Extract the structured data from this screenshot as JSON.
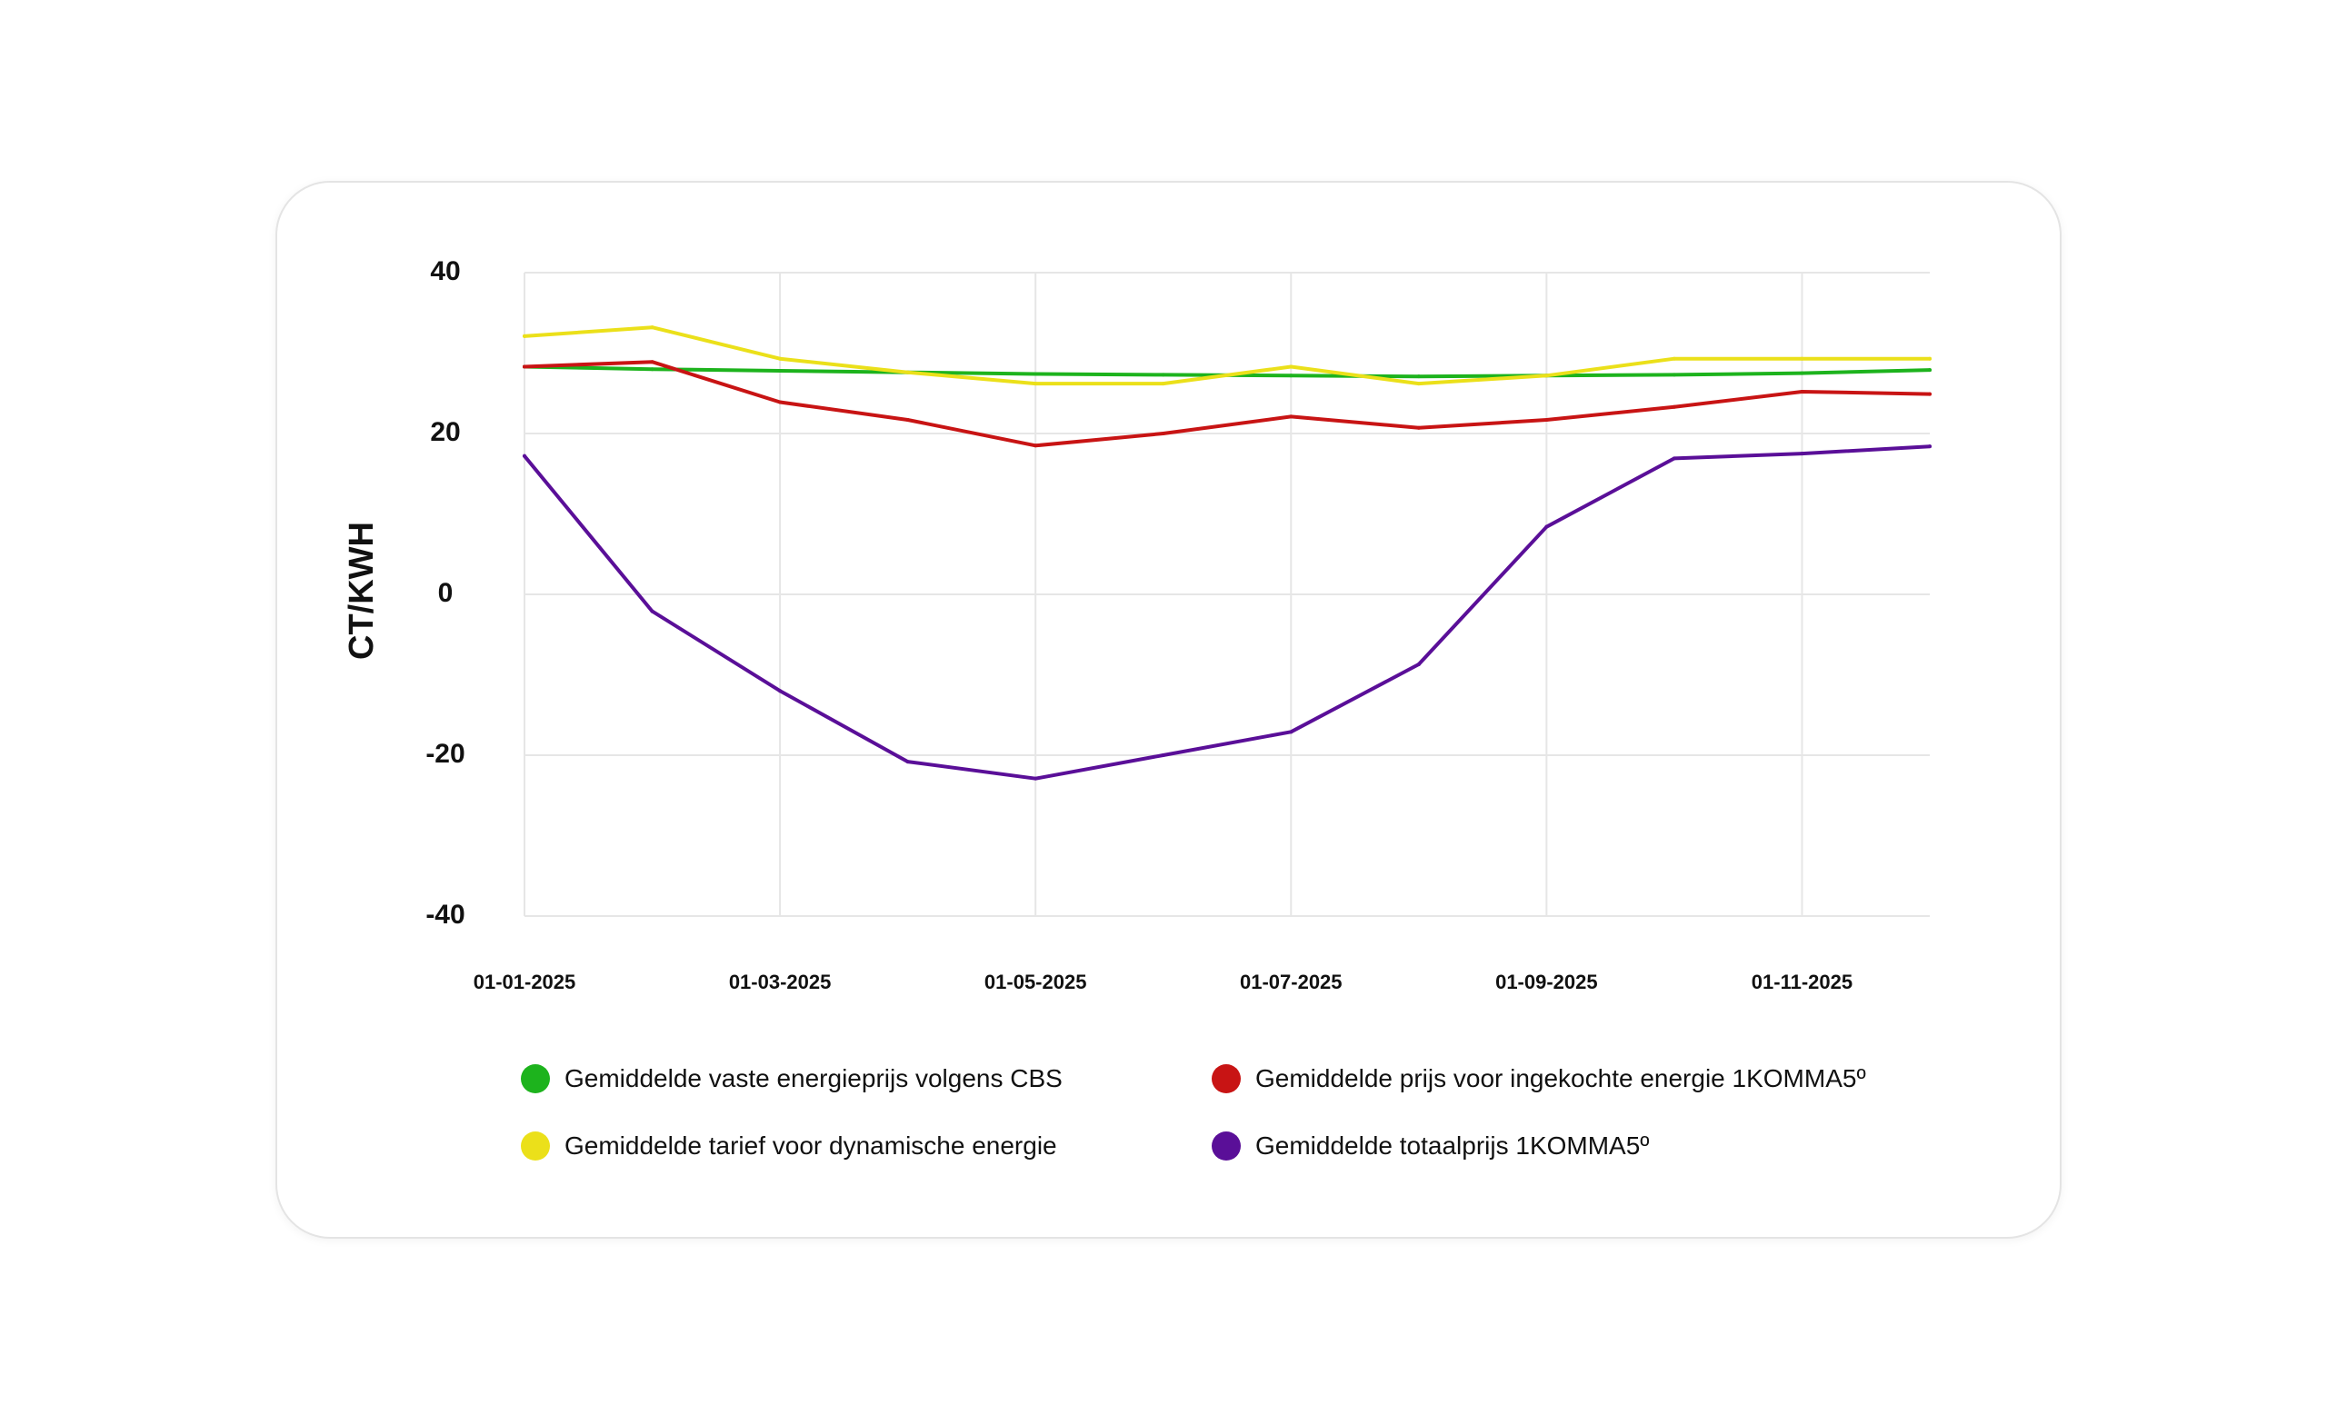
{
  "chart_data": {
    "type": "line",
    "ylabel": "CT/KWH",
    "xlabel": "",
    "ylim": [
      -40,
      40
    ],
    "yticks": [
      40,
      20,
      0,
      -20,
      -40
    ],
    "x": [
      "01-01-2025",
      "01-02-2025",
      "01-03-2025",
      "01-04-2025",
      "01-05-2025",
      "01-06-2025",
      "01-07-2025",
      "01-08-2025",
      "01-09-2025",
      "01-10-2025",
      "01-11-2025",
      "01-12-2025"
    ],
    "xtick_labels": [
      "01-01-2025",
      "01-03-2025",
      "01-05-2025",
      "01-07-2025",
      "01-09-2025",
      "01-11-2025"
    ],
    "grid": true,
    "legend_position": "bottom",
    "series": [
      {
        "name": "Gemiddelde vaste energieprijs volgens CBS",
        "color": "#1db31d",
        "values": [
          28.3,
          28.0,
          27.8,
          27.6,
          27.4,
          27.3,
          27.2,
          27.1,
          27.2,
          27.3,
          27.5,
          27.9
        ]
      },
      {
        "name": "Gemiddelde tarief voor dynamische energie",
        "color": "#ebe01a",
        "values": [
          32.1,
          33.2,
          29.3,
          27.6,
          26.2,
          26.2,
          28.3,
          26.2,
          27.2,
          29.3,
          29.3,
          29.3
        ]
      },
      {
        "name": "Gemiddelde prijs voor ingekochte energie 1KOMMA5º",
        "color": "#c81414",
        "values": [
          28.3,
          28.9,
          23.9,
          21.7,
          18.5,
          20.0,
          22.1,
          20.7,
          21.7,
          23.3,
          25.2,
          24.9
        ]
      },
      {
        "name": "Gemiddelde totaalprijs 1KOMMA5º",
        "color": "#5a0f98",
        "values": [
          17.2,
          -2.1,
          -12.0,
          -20.8,
          -22.9,
          -20.0,
          -17.1,
          -8.7,
          8.4,
          16.9,
          17.5,
          18.4
        ]
      }
    ]
  },
  "legend": {
    "items": [
      {
        "label": "Gemiddelde vaste energieprijs volgens CBS",
        "color": "#1db31d"
      },
      {
        "label": "Gemiddelde prijs voor ingekochte energie 1KOMMA5º",
        "color": "#c81414"
      },
      {
        "label": "Gemiddelde tarief voor dynamische energie",
        "color": "#ebe01a"
      },
      {
        "label": "Gemiddelde totaalprijs 1KOMMA5º",
        "color": "#5a0f98"
      }
    ]
  }
}
